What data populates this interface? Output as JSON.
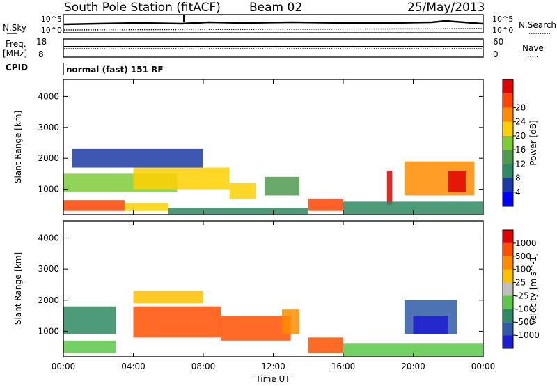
{
  "header": {
    "station": "South Pole Station (fitACF)",
    "beam": "Beam 02",
    "date": "25/May/2013"
  },
  "noise_panel": {
    "left_label": "N.Sky",
    "right_label": "N.Search",
    "left_ticks": [
      "10^5",
      "10^0"
    ],
    "right_ticks": [
      "10^5",
      "10^0"
    ]
  },
  "freq_panel": {
    "left_label_1": "Freq.",
    "left_label_2": "[MHz]",
    "right_label": "Nave",
    "left_ticks": [
      "18",
      "8"
    ],
    "right_ticks": [
      "60",
      "0"
    ]
  },
  "cpid": {
    "label": "CPID",
    "value": "normal (fast) 151 RF"
  },
  "colors": {
    "power": [
      "#0000ff",
      "#1c3aa5",
      "#2e8a62",
      "#4f9a4f",
      "#7fcc3a",
      "#ffd000",
      "#ff8c00",
      "#ff4400",
      "#e00000"
    ],
    "velocity": [
      "#1c1cd0",
      "#2e5aa8",
      "#2e8a62",
      "#5cc84a",
      "#c0c0c0",
      "#ffc000",
      "#ff8c00",
      "#ff5000",
      "#e00000"
    ]
  },
  "chart_data": [
    {
      "type": "heatmap",
      "name": "power",
      "ylabel": "Slant Range [km]",
      "yticks": [
        "1000",
        "2000",
        "3000",
        "4000"
      ],
      "ylim": [
        180,
        4550
      ],
      "xticks": [
        "00:00",
        "04:00",
        "08:00",
        "12:00",
        "16:00",
        "20:00",
        "00:00"
      ],
      "xlim_hours": [
        0,
        24
      ],
      "colorbar": {
        "label": "Power [dB]",
        "ticks": [
          "4",
          "8",
          "12",
          "16",
          "20",
          "24",
          "28"
        ]
      },
      "regions": [
        {
          "t0": 0.0,
          "t1": 3.5,
          "r0": 300,
          "r1": 650,
          "level": 7
        },
        {
          "t0": 3.5,
          "t1": 6.0,
          "r0": 300,
          "r1": 550,
          "level": 5
        },
        {
          "t0": 0.0,
          "t1": 6.5,
          "r0": 900,
          "r1": 1500,
          "level": 4
        },
        {
          "t0": 4.0,
          "t1": 9.5,
          "r0": 1000,
          "r1": 1700,
          "level": 5
        },
        {
          "t0": 0.5,
          "t1": 8.0,
          "r0": 1700,
          "r1": 2300,
          "level": 1
        },
        {
          "t0": 9.5,
          "t1": 11.0,
          "r0": 700,
          "r1": 1200,
          "level": 5
        },
        {
          "t0": 11.5,
          "t1": 13.5,
          "r0": 800,
          "r1": 1400,
          "level": 3
        },
        {
          "t0": 14.0,
          "t1": 16.0,
          "r0": 300,
          "r1": 700,
          "level": 7
        },
        {
          "t0": 6.0,
          "t1": 14.0,
          "r0": 200,
          "r1": 400,
          "level": 2
        },
        {
          "t0": 18.5,
          "t1": 18.8,
          "r0": 500,
          "r1": 1600,
          "level": 8
        },
        {
          "t0": 19.5,
          "t1": 23.5,
          "r0": 800,
          "r1": 1900,
          "level": 6
        },
        {
          "t0": 22.0,
          "t1": 23.0,
          "r0": 900,
          "r1": 1600,
          "level": 8
        },
        {
          "t0": 16.0,
          "t1": 24.0,
          "r0": 200,
          "r1": 600,
          "level": 2
        }
      ]
    },
    {
      "type": "heatmap",
      "name": "velocity",
      "ylabel": "Slant Range [km]",
      "yticks": [
        "1000",
        "2000",
        "3000",
        "4000"
      ],
      "ylim": [
        180,
        4550
      ],
      "xticks": [
        "00:00",
        "04:00",
        "08:00",
        "12:00",
        "16:00",
        "20:00",
        "00:00"
      ],
      "xlim_hours": [
        0,
        24
      ],
      "xlabel": "Time UT",
      "colorbar": {
        "label": "Velocity [m s^-1]",
        "ticks": [
          "1000",
          "500",
          "100",
          "25",
          "-25",
          "-100",
          "-500",
          "-1000"
        ]
      },
      "regions": [
        {
          "t0": 0.0,
          "t1": 3.0,
          "r0": 300,
          "r1": 700,
          "level": 3
        },
        {
          "t0": 0.0,
          "t1": 3.0,
          "r0": 900,
          "r1": 1800,
          "level": 2
        },
        {
          "t0": 4.0,
          "t1": 9.0,
          "r0": 800,
          "r1": 1800,
          "level": 7
        },
        {
          "t0": 9.0,
          "t1": 13.0,
          "r0": 700,
          "r1": 1500,
          "level": 7
        },
        {
          "t0": 14.0,
          "t1": 16.0,
          "r0": 300,
          "r1": 800,
          "level": 7
        },
        {
          "t0": 12.5,
          "t1": 13.5,
          "r0": 900,
          "r1": 1700,
          "level": 6
        },
        {
          "t0": 19.5,
          "t1": 22.5,
          "r0": 900,
          "r1": 2000,
          "level": 1
        },
        {
          "t0": 20.0,
          "t1": 22.0,
          "r0": 900,
          "r1": 1500,
          "level": 0
        },
        {
          "t0": 16.0,
          "t1": 24.0,
          "r0": 200,
          "r1": 600,
          "level": 3
        },
        {
          "t0": 4.0,
          "t1": 8.0,
          "r0": 1900,
          "r1": 2300,
          "level": 5
        }
      ]
    }
  ]
}
